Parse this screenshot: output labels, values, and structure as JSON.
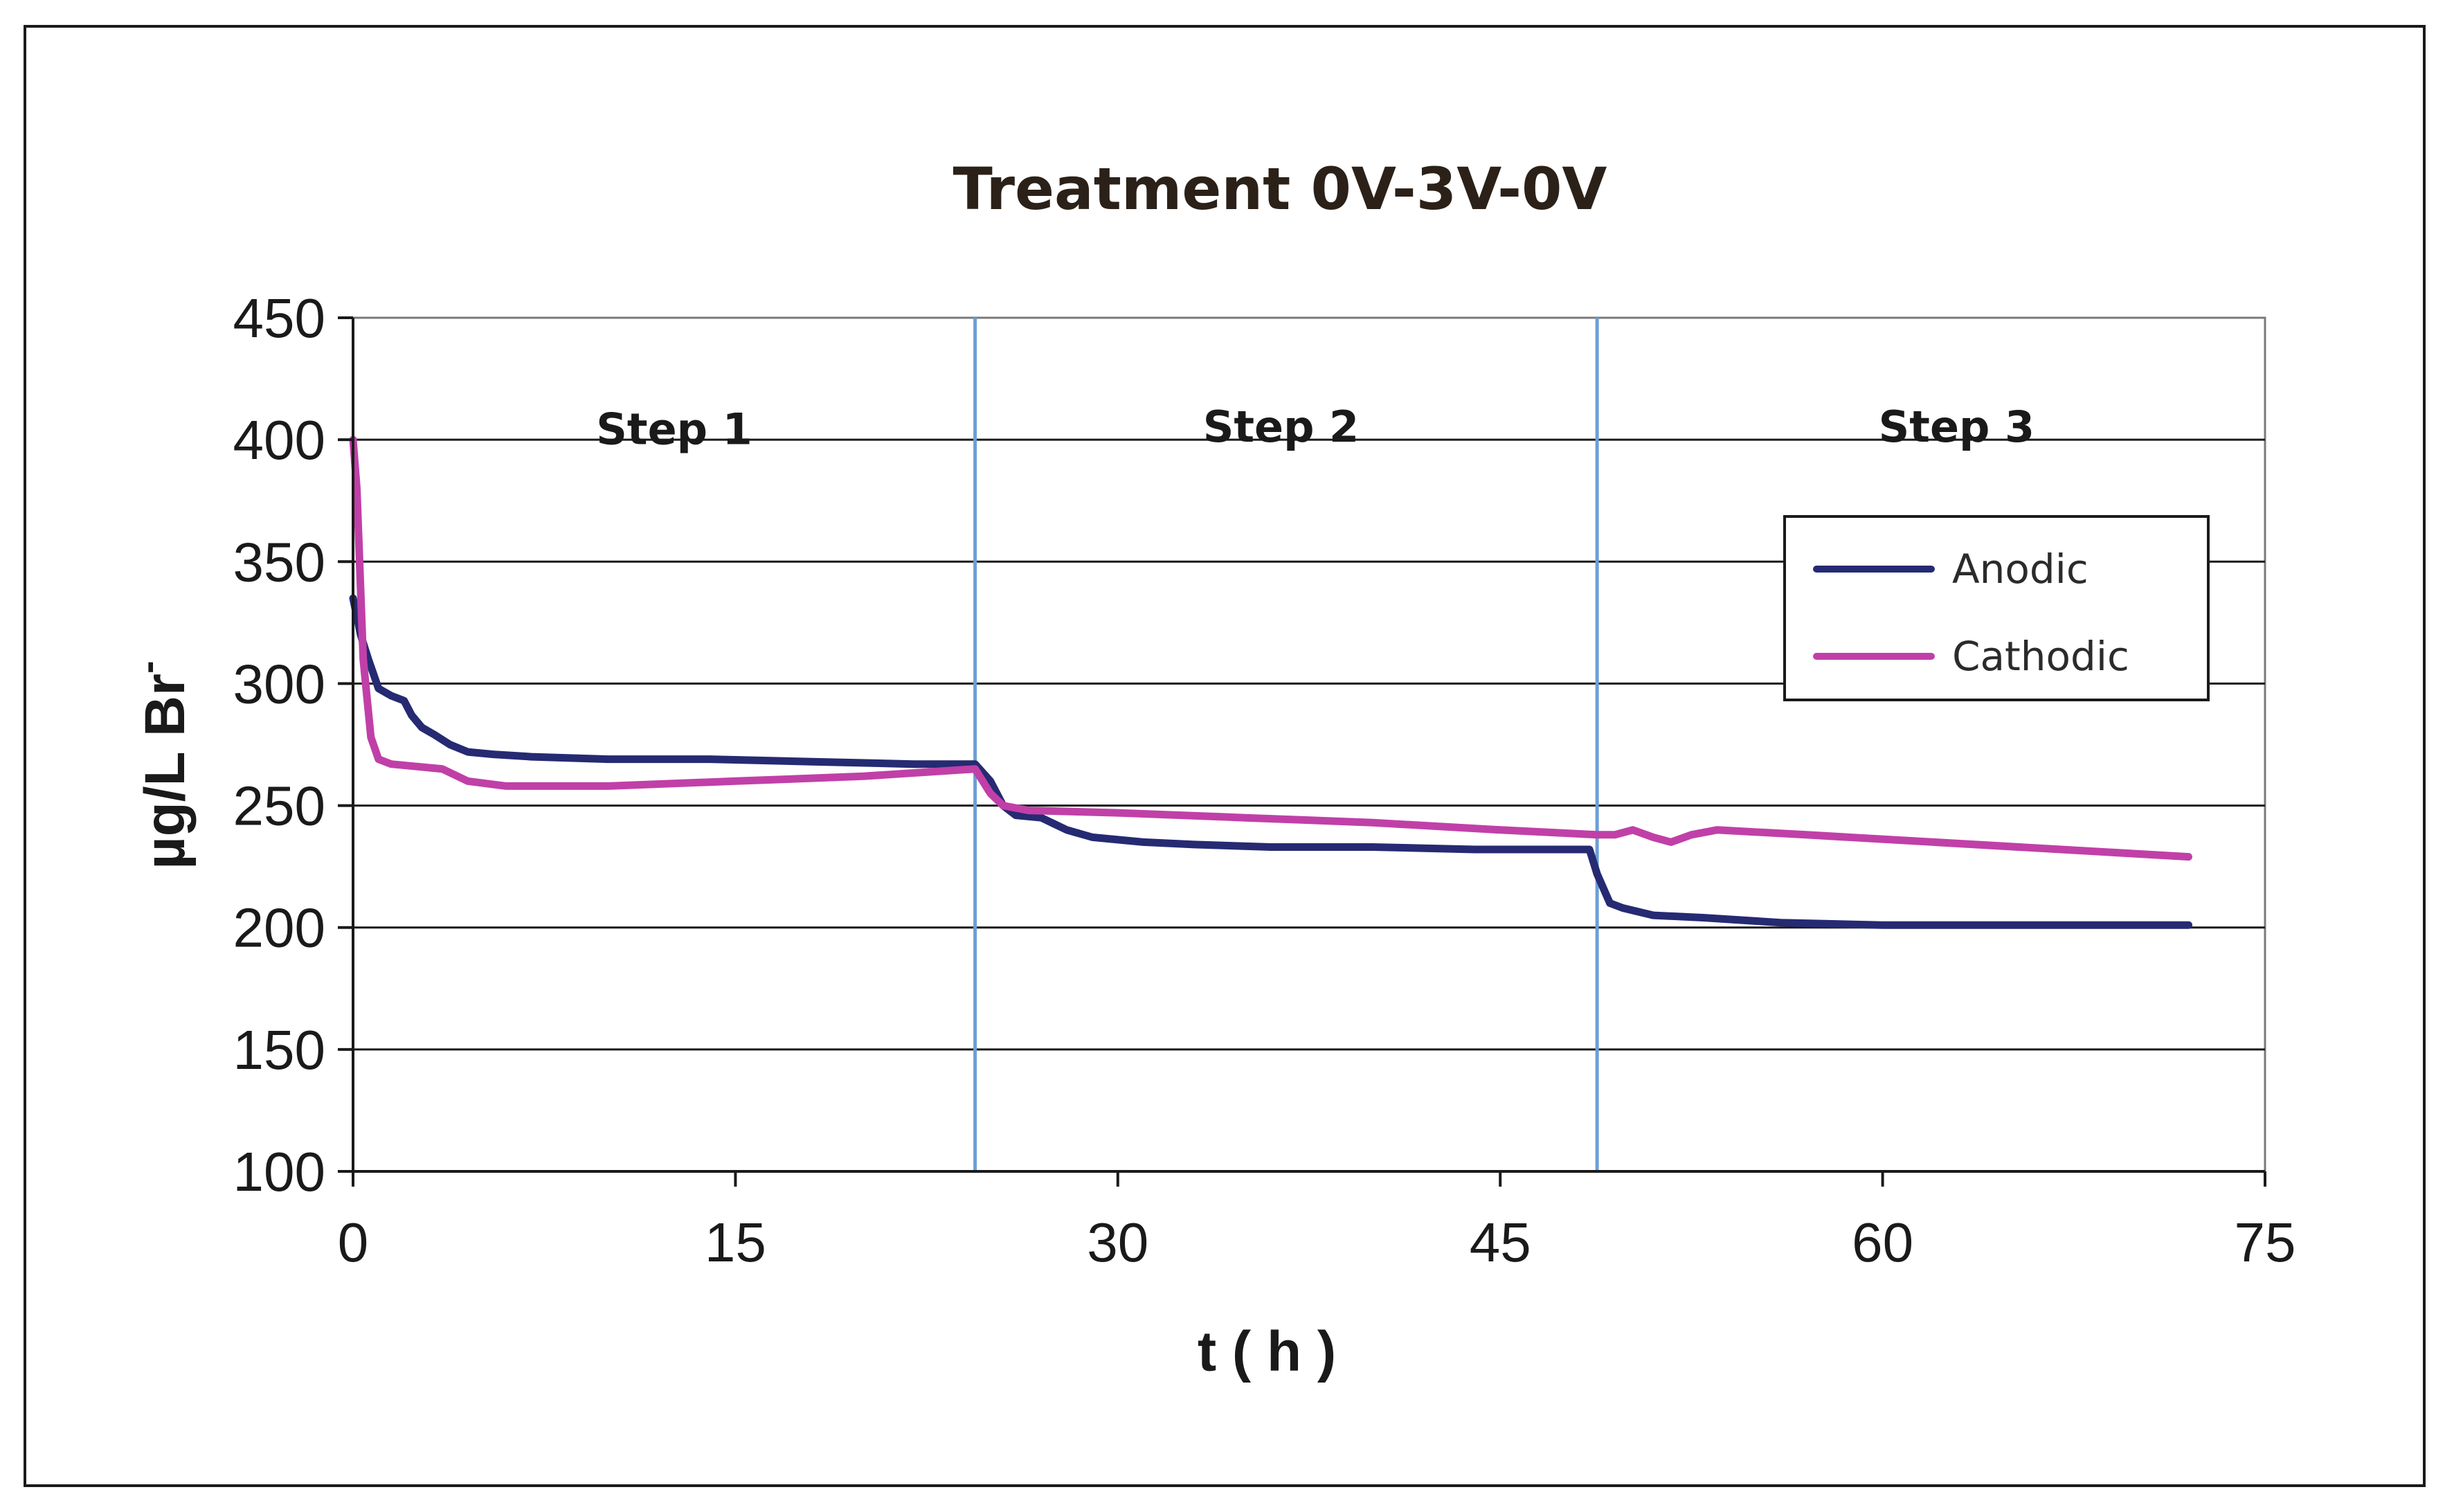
{
  "chart_data": {
    "type": "line",
    "title": "Treatment 0V-3V-0V",
    "xlabel": "t ( h )",
    "ylabel": "µg/L Br",
    "ylabel_superscript": "-",
    "xlim": [
      0,
      75
    ],
    "ylim": [
      100,
      450
    ],
    "xticks": [
      0,
      15,
      30,
      45,
      60,
      75
    ],
    "yticks": [
      100,
      150,
      200,
      250,
      300,
      350,
      400,
      450
    ],
    "grid": "horizontal",
    "legend_position": "right",
    "step_boundaries": [
      24.4,
      48.8
    ],
    "steps": [
      {
        "label": "Step 1",
        "center": 12.6,
        "y": 405
      },
      {
        "label": "Step 2",
        "center": 36.4,
        "y": 406
      },
      {
        "label": "Step 3",
        "center": 62.9,
        "y": 406
      }
    ],
    "colors": {
      "anodic": "#252a72",
      "cathodic": "#c040a8",
      "step_line": "#6c9fd4",
      "grid": "#1a1a1a"
    },
    "series": [
      {
        "name": "Anodic",
        "color": "#252a72",
        "x": [
          0,
          0.3,
          0.6,
          1.0,
          1.5,
          2.0,
          2.3,
          2.7,
          3.2,
          3.8,
          4.5,
          5.5,
          7,
          10,
          14,
          18,
          22,
          24.4,
          25.0,
          25.5,
          26.0,
          27.0,
          28.0,
          29.0,
          31.0,
          33.0,
          36.0,
          40.0,
          44.0,
          48.5,
          48.8,
          49.3,
          49.8,
          51.0,
          53.0,
          56.0,
          60.0,
          66.0,
          72.0
        ],
        "y": [
          335,
          320,
          310,
          298,
          295,
          293,
          287,
          282,
          279,
          275,
          272,
          271,
          270,
          269,
          269,
          268,
          267,
          267,
          260,
          250,
          246,
          245,
          240,
          237,
          235,
          234,
          233,
          233,
          232,
          232,
          222,
          210,
          208,
          205,
          204,
          202,
          201,
          201,
          201
        ]
      },
      {
        "name": "Cathodic",
        "color": "#c040a8",
        "x": [
          0,
          0.15,
          0.4,
          0.7,
          1.0,
          1.5,
          2.5,
          3.5,
          4.5,
          6.0,
          10.0,
          15.0,
          20.0,
          24.4,
          25.0,
          25.5,
          26.5,
          30.0,
          35.0,
          40.0,
          45.0,
          48.8,
          49.5,
          50.2,
          51.0,
          51.7,
          52.5,
          53.5,
          57.0,
          62.0,
          67.0,
          72.0
        ],
        "y": [
          400,
          380,
          310,
          278,
          269,
          267,
          266,
          265,
          260,
          258,
          258,
          260,
          262,
          265,
          255,
          250,
          248,
          247,
          245,
          243,
          240,
          238,
          238,
          240,
          237,
          235,
          238,
          240,
          238,
          235,
          232,
          229
        ]
      }
    ]
  }
}
